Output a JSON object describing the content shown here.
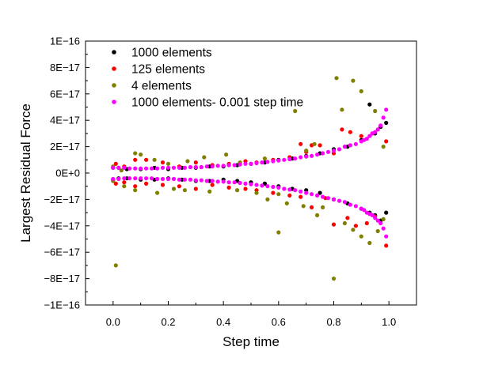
{
  "chart_data": {
    "type": "scatter",
    "xlabel": "Step time",
    "ylabel": "Largest Residual Force",
    "xlim": [
      -0.1,
      1.1
    ],
    "ylim": [
      -1e-16,
      1e-16
    ],
    "grid": false,
    "legend_position": "top-left",
    "x_ticks": [
      {
        "value": 0.0,
        "label": "0.0"
      },
      {
        "value": 0.2,
        "label": "0.2"
      },
      {
        "value": 0.4,
        "label": "0.4"
      },
      {
        "value": 0.6,
        "label": "0.6"
      },
      {
        "value": 0.8,
        "label": "0.8"
      },
      {
        "value": 1.0,
        "label": "1.0"
      }
    ],
    "y_ticks": [
      {
        "value": 1e-16,
        "label": "1E−16"
      },
      {
        "value": 8e-17,
        "label": "8E−17"
      },
      {
        "value": 6e-17,
        "label": "6E−17"
      },
      {
        "value": 4e-17,
        "label": "4E−17"
      },
      {
        "value": 2e-17,
        "label": "2E−17"
      },
      {
        "value": 0,
        "label": "0E+0"
      },
      {
        "value": -2e-17,
        "label": "−2E−17"
      },
      {
        "value": -4e-17,
        "label": "−4E−17"
      },
      {
        "value": -6e-17,
        "label": "−6E−17"
      },
      {
        "value": -8e-17,
        "label": "−8E−17"
      },
      {
        "value": -1e-16,
        "label": "−1E−16"
      }
    ],
    "series": [
      {
        "name": "1000 elements",
        "color": "#000000",
        "x": [
          0.0,
          0.02,
          0.05,
          0.1,
          0.15,
          0.2,
          0.25,
          0.3,
          0.35,
          0.4,
          0.45,
          0.5,
          0.55,
          0.6,
          0.65,
          0.7,
          0.75,
          0.8,
          0.85,
          0.9,
          0.93,
          0.95,
          0.97,
          0.99,
          0.0,
          0.02,
          0.05,
          0.1,
          0.15,
          0.2,
          0.25,
          0.3,
          0.35,
          0.4,
          0.45,
          0.5,
          0.55,
          0.6,
          0.65,
          0.7,
          0.75,
          0.8,
          0.85,
          0.9,
          0.93,
          0.95,
          0.97,
          0.99
        ],
        "y": [
          4e-18,
          4e-18,
          3e-18,
          3e-18,
          4e-18,
          3e-18,
          4e-18,
          4e-18,
          5e-18,
          5e-18,
          6e-18,
          7e-18,
          8e-18,
          1e-17,
          1.1e-17,
          1.3e-17,
          1.5e-17,
          1.8e-17,
          2e-17,
          2.5e-17,
          5.2e-17,
          3e-17,
          3.5e-17,
          3.8e-17,
          -5e-18,
          -4e-18,
          -4e-18,
          -5e-18,
          -5e-18,
          -4e-18,
          -5e-18,
          -6e-18,
          -6e-18,
          -5e-18,
          -6e-18,
          -7e-18,
          -8e-18,
          -1e-17,
          -1.2e-17,
          -1.3e-17,
          -1.5e-17,
          -2e-17,
          -2.3e-17,
          -2.7e-17,
          -3e-17,
          -3.2e-17,
          -3.6e-17,
          -3e-17
        ]
      },
      {
        "name": "125 elements",
        "color": "#ff0000",
        "x": [
          0.01,
          0.04,
          0.08,
          0.12,
          0.18,
          0.24,
          0.3,
          0.36,
          0.42,
          0.48,
          0.52,
          0.58,
          0.64,
          0.68,
          0.7,
          0.72,
          0.75,
          0.8,
          0.83,
          0.86,
          0.9,
          0.94,
          0.99,
          0.01,
          0.04,
          0.08,
          0.12,
          0.18,
          0.24,
          0.3,
          0.36,
          0.42,
          0.48,
          0.52,
          0.58,
          0.64,
          0.68,
          0.72,
          0.77,
          0.8,
          0.85,
          0.88,
          0.92,
          0.95,
          0.99
        ],
        "y": [
          7e-18,
          5e-18,
          1e-17,
          1e-17,
          8e-18,
          5e-18,
          8e-18,
          6e-18,
          7e-18,
          9e-18,
          8e-18,
          1e-17,
          1.2e-17,
          2.2e-17,
          1.6e-17,
          2.1e-17,
          2.1e-17,
          1.5e-17,
          3.3e-17,
          3.1e-17,
          2.8e-17,
          3e-17,
          2.4e-17,
          -8e-18,
          -7e-18,
          -1e-17,
          -8e-18,
          -9e-18,
          -1e-17,
          -1.2e-17,
          -9e-18,
          -1.1e-17,
          -1.2e-17,
          -1.3e-17,
          -1.5e-17,
          -1.7e-17,
          -1.8e-17,
          -2.6e-17,
          -1.9e-17,
          -3.9e-17,
          -3.4e-17,
          -4e-17,
          -3.8e-17,
          -3.3e-17,
          -5.5e-17
        ]
      },
      {
        "name": "4 elements",
        "color": "#808000",
        "x": [
          0.0,
          0.03,
          0.08,
          0.1,
          0.15,
          0.2,
          0.27,
          0.33,
          0.41,
          0.46,
          0.55,
          0.66,
          0.7,
          0.73,
          0.81,
          0.83,
          0.87,
          0.9,
          0.95,
          0.98,
          0.0,
          0.04,
          0.08,
          0.16,
          0.22,
          0.26,
          0.35,
          0.45,
          0.52,
          0.56,
          0.6,
          0.63,
          0.69,
          0.74,
          0.76,
          0.8,
          0.84,
          0.87,
          0.9,
          0.93,
          0.96,
          0.98,
          0.01,
          0.6
        ],
        "y": [
          5e-18,
          2e-18,
          1.5e-17,
          1.4e-17,
          1e-17,
          7e-18,
          9e-18,
          1.2e-17,
          1.4e-17,
          8e-18,
          1.1e-17,
          4.7e-17,
          1.7e-17,
          2.2e-17,
          7.2e-17,
          4.8e-17,
          7e-17,
          6.2e-17,
          4.7e-17,
          2e-17,
          -6e-18,
          -1e-17,
          -1.3e-17,
          -1.5e-17,
          -1.2e-17,
          -1.3e-17,
          -1.4e-17,
          -1.3e-17,
          -1.5e-17,
          -2e-17,
          -4.5e-17,
          -2.3e-17,
          -2.5e-17,
          -3.2e-17,
          -2.6e-17,
          -8e-17,
          -3.8e-17,
          -4.3e-17,
          -4.8e-17,
          -5.3e-17,
          -4.4e-17,
          -3.5e-17,
          -7e-17,
          -1.6e-17
        ]
      },
      {
        "name": "1000 elements- 0.001 step time",
        "color": "#ff00ff",
        "x": [
          0.0,
          0.02,
          0.04,
          0.06,
          0.08,
          0.1,
          0.12,
          0.14,
          0.16,
          0.18,
          0.2,
          0.22,
          0.24,
          0.26,
          0.28,
          0.3,
          0.32,
          0.34,
          0.36,
          0.38,
          0.4,
          0.42,
          0.44,
          0.46,
          0.48,
          0.5,
          0.52,
          0.54,
          0.56,
          0.58,
          0.6,
          0.62,
          0.64,
          0.66,
          0.68,
          0.7,
          0.72,
          0.74,
          0.76,
          0.78,
          0.8,
          0.82,
          0.84,
          0.86,
          0.88,
          0.9,
          0.91,
          0.92,
          0.93,
          0.94,
          0.95,
          0.96,
          0.97,
          0.98,
          0.99,
          0.0,
          0.02,
          0.04,
          0.06,
          0.08,
          0.1,
          0.12,
          0.14,
          0.16,
          0.18,
          0.2,
          0.22,
          0.24,
          0.26,
          0.28,
          0.3,
          0.32,
          0.34,
          0.36,
          0.38,
          0.4,
          0.42,
          0.44,
          0.46,
          0.48,
          0.5,
          0.52,
          0.54,
          0.56,
          0.58,
          0.6,
          0.62,
          0.64,
          0.66,
          0.68,
          0.7,
          0.72,
          0.74,
          0.76,
          0.78,
          0.8,
          0.82,
          0.84,
          0.86,
          0.88,
          0.9,
          0.91,
          0.92,
          0.93,
          0.94,
          0.95,
          0.96,
          0.97,
          0.98,
          0.99
        ],
        "y": [
          4e-18,
          4e-18,
          4e-18,
          3.5e-18,
          3.5e-18,
          3.5e-18,
          3.5e-18,
          3.5e-18,
          3.5e-18,
          4e-18,
          4e-18,
          4e-18,
          4e-18,
          4e-18,
          4.5e-18,
          4.5e-18,
          4.5e-18,
          5e-18,
          5e-18,
          5.5e-18,
          5.5e-18,
          6e-18,
          6e-18,
          6.5e-18,
          7e-18,
          7e-18,
          7.5e-18,
          8e-18,
          8.5e-18,
          9e-18,
          9.5e-18,
          1e-17,
          1.05e-17,
          1.1e-17,
          1.2e-17,
          1.25e-17,
          1.3e-17,
          1.4e-17,
          1.5e-17,
          1.6e-17,
          1.7e-17,
          1.8e-17,
          2e-17,
          2.1e-17,
          2.2e-17,
          2.4e-17,
          2.5e-17,
          2.6e-17,
          2.8e-17,
          3e-17,
          3.1e-17,
          3.3e-17,
          3.6e-17,
          4.2e-17,
          4.8e-17,
          -4.5e-18,
          -4.5e-18,
          -4e-18,
          -4e-18,
          -4e-18,
          -4e-18,
          -4e-18,
          -4e-18,
          -4.5e-18,
          -4.5e-18,
          -4.5e-18,
          -4.5e-18,
          -5e-18,
          -5e-18,
          -5e-18,
          -5.5e-18,
          -5.5e-18,
          -6e-18,
          -6e-18,
          -6.5e-18,
          -6.5e-18,
          -7e-18,
          -7e-18,
          -7.5e-18,
          -8e-18,
          -8.5e-18,
          -9e-18,
          -9.5e-18,
          -1e-17,
          -1.05e-17,
          -1.1e-17,
          -1.2e-17,
          -1.25e-17,
          -1.3e-17,
          -1.4e-17,
          -1.5e-17,
          -1.6e-17,
          -1.7e-17,
          -1.8e-17,
          -1.9e-17,
          -2e-17,
          -2.1e-17,
          -2.2e-17,
          -2.4e-17,
          -2.5e-17,
          -2.7e-17,
          -2.8e-17,
          -3e-17,
          -3.1e-17,
          -3.2e-17,
          -3.4e-17,
          -3.6e-17,
          -3.8e-17,
          -4.2e-17,
          -4.8e-17
        ]
      }
    ]
  }
}
